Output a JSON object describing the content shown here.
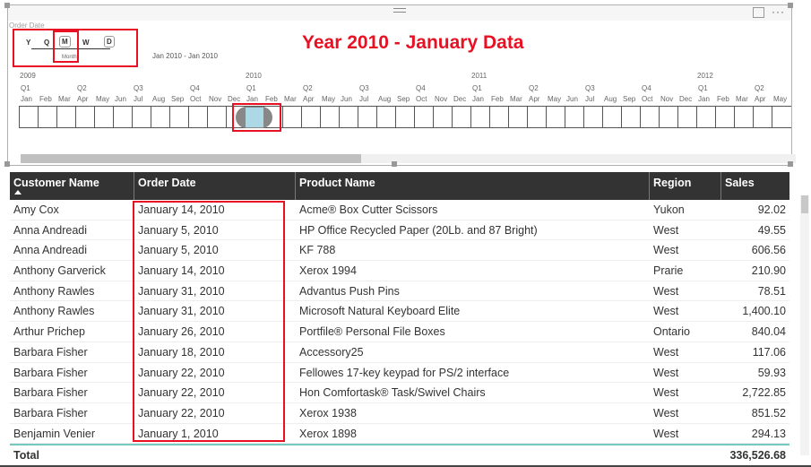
{
  "slicer": {
    "field_label": "Order Date",
    "granularity": [
      "Y",
      "Q",
      "M",
      "W",
      "D"
    ],
    "granularity_selected": "M",
    "granularity_hint": "Month",
    "range_text": "Jan 2010 - Jan 2010",
    "years": [
      {
        "label": "2009",
        "start": 0
      },
      {
        "label": "2010",
        "start": 12
      },
      {
        "label": "2011",
        "start": 24
      },
      {
        "label": "2012",
        "start": 36
      }
    ],
    "quarters": [
      "Q1",
      "Q2",
      "Q3",
      "Q4"
    ],
    "months": [
      "Jan",
      "Feb",
      "Mar",
      "Apr",
      "May",
      "Jun",
      "Jul",
      "Aug",
      "Sep",
      "Oct",
      "Nov",
      "Dec"
    ],
    "visible_months_total": 41,
    "selected_period": "Jan 2010"
  },
  "title": "Year 2010 - January Data",
  "colors": {
    "accent": "#e81123",
    "selection": "#add8e6",
    "header_bg": "#333333"
  },
  "table": {
    "columns": [
      "Customer Name",
      "Order Date",
      "Product Name",
      "Region",
      "Sales"
    ],
    "rows": [
      [
        "Amy Cox",
        "January 14, 2010",
        "Acme® Box Cutter Scissors",
        "Yukon",
        "92.02"
      ],
      [
        "Anna Andreadi",
        "January 5, 2010",
        "HP Office Recycled Paper (20Lb. and 87 Bright)",
        "West",
        "49.55"
      ],
      [
        "Anna Andreadi",
        "January 5, 2010",
        "KF 788",
        "West",
        "606.56"
      ],
      [
        "Anthony Garverick",
        "January 14, 2010",
        "Xerox 1994",
        "Prarie",
        "210.90"
      ],
      [
        "Anthony Rawles",
        "January 31, 2010",
        "Advantus Push Pins",
        "West",
        "78.51"
      ],
      [
        "Anthony Rawles",
        "January 31, 2010",
        "Microsoft Natural Keyboard Elite",
        "West",
        "1,400.10"
      ],
      [
        "Arthur Prichep",
        "January 26, 2010",
        "Portfile® Personal File Boxes",
        "Ontario",
        "840.04"
      ],
      [
        "Barbara Fisher",
        "January 18, 2010",
        "Accessory25",
        "West",
        "117.06"
      ],
      [
        "Barbara Fisher",
        "January 22, 2010",
        "Fellowes 17-key keypad for PS/2 interface",
        "West",
        "59.93"
      ],
      [
        "Barbara Fisher",
        "January 22, 2010",
        "Hon Comfortask® Task/Swivel Chairs",
        "West",
        "2,722.85"
      ],
      [
        "Barbara Fisher",
        "January 22, 2010",
        "Xerox 1938",
        "West",
        "851.52"
      ],
      [
        "Benjamin Venier",
        "January 1, 2010",
        "Xerox 1898",
        "West",
        "294.13"
      ]
    ],
    "total_label": "Total",
    "total_value": "336,526.68"
  }
}
